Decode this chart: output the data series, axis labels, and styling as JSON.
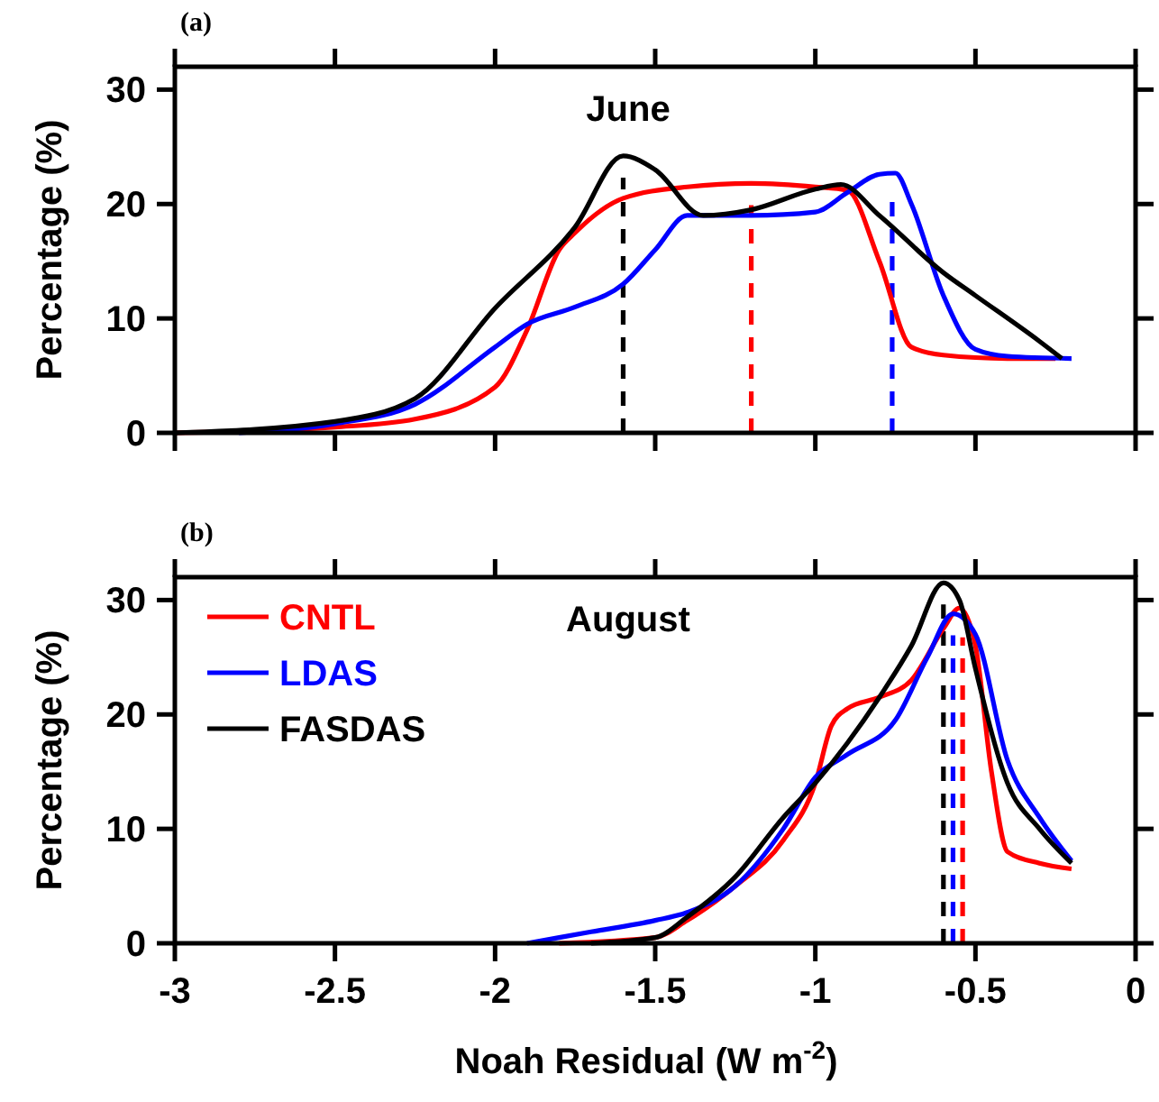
{
  "chart_data": [
    {
      "type": "line",
      "title": "June",
      "ylabel": "Percentage (%)",
      "annotations": [
        "(a)"
      ],
      "xlim": [
        -3,
        0
      ],
      "xticks": [
        -3,
        -2.5,
        -2,
        -1.5,
        -1,
        -0.5,
        0
      ],
      "ylim": [
        0,
        32
      ],
      "yticks": [
        0,
        10,
        20,
        30
      ],
      "tick_labels": "y",
      "legend": false,
      "line_style": "solid",
      "series": [
        {
          "color": "#ff0000",
          "x": [
            -3,
            -2.5,
            -2.25,
            -2.0,
            -1.9,
            -1.8,
            -1.75,
            -1.6,
            -1.4,
            -1.2,
            -1.0,
            -0.9,
            -0.8,
            -0.7,
            -0.6,
            -0.4,
            -0.25
          ],
          "values": [
            0,
            0.5,
            1.2,
            4,
            9,
            16,
            17.5,
            20.5,
            21.5,
            21.8,
            21.5,
            21.2,
            15,
            7.5,
            6.8,
            6.5,
            6.5
          ]
        },
        {
          "color": "#0000ff",
          "x": [
            -2.8,
            -2.5,
            -2.25,
            -2,
            -1.9,
            -1.75,
            -1.6,
            -1.5,
            -1.4,
            -1.2,
            -1.0,
            -0.9,
            -0.8,
            -0.75,
            -0.7,
            -0.6,
            -0.5,
            -0.4,
            -0.2
          ],
          "values": [
            0,
            0.8,
            2.5,
            7.5,
            9.5,
            11,
            13,
            16,
            19,
            19,
            19.3,
            21,
            22.6,
            22.7,
            20,
            12,
            7.3,
            6.7,
            6.5
          ]
        },
        {
          "color": "#000000",
          "x": [
            -3,
            -2.5,
            -2.25,
            -2,
            -1.75,
            -1.6,
            -1.5,
            -1.35,
            -1.2,
            -1.0,
            -0.92,
            -0.8,
            -0.6,
            -0.5,
            -0.3,
            -0.23
          ],
          "values": [
            0,
            1,
            3,
            10.9,
            18,
            24.2,
            23,
            19,
            19.5,
            21.3,
            21.7,
            19,
            14,
            12,
            8,
            6.5
          ]
        }
      ],
      "ref_lines": [
        {
          "axis": "x",
          "value": -1.6,
          "color": "#000000",
          "line_style": "dashed"
        },
        {
          "axis": "x",
          "value": -1.2,
          "color": "#ff0000",
          "line_style": "dashed"
        },
        {
          "axis": "x",
          "value": -0.76,
          "color": "#0000ff",
          "line_style": "dashed"
        }
      ]
    },
    {
      "type": "line",
      "title": "August",
      "xlabel": "Noah Residual (W m$^{-2}$)",
      "ylabel": "Percentage (%)",
      "annotations": [
        "(b)"
      ],
      "xlim": [
        -3,
        0
      ],
      "xticks": [
        -3,
        -2.5,
        -2,
        -1.5,
        -1,
        -0.5,
        0
      ],
      "ylim": [
        0,
        32
      ],
      "yticks": [
        0,
        10,
        20,
        30
      ],
      "legend": "top left",
      "line_style": "solid",
      "series": [
        {
          "name": "CNTL",
          "color": "#ff0000",
          "x": [
            -1.8,
            -1.5,
            -1.4,
            -1.25,
            -1.1,
            -1.0,
            -0.95,
            -0.9,
            -0.8,
            -0.7,
            -0.6,
            -0.55,
            -0.5,
            -0.45,
            -0.4,
            -0.3,
            -0.2
          ],
          "values": [
            0,
            0.5,
            2,
            5,
            9,
            14,
            19,
            20.5,
            21.5,
            23,
            27.5,
            29.3,
            26,
            15,
            8,
            7,
            6.5
          ]
        },
        {
          "name": "LDAS",
          "color": "#0000ff",
          "x": [
            -1.9,
            -1.7,
            -1.5,
            -1.4,
            -1.25,
            -1.1,
            -1.0,
            -0.9,
            -0.75,
            -0.65,
            -0.57,
            -0.5,
            -0.4,
            -0.3,
            -0.2
          ],
          "values": [
            0,
            1,
            2,
            2.7,
            5,
            10,
            14.5,
            16.5,
            19.5,
            25,
            28.8,
            27,
            16,
            11,
            7.2
          ]
        },
        {
          "name": "FASDAS",
          "color": "#000000",
          "x": [
            -1.7,
            -1.5,
            -1.4,
            -1.25,
            -1.1,
            -1.0,
            -0.9,
            -0.8,
            -0.7,
            -0.6,
            -0.55,
            -0.5,
            -0.4,
            -0.3,
            -0.2
          ],
          "values": [
            0,
            0.5,
            2.3,
            5.8,
            11,
            14,
            17.5,
            21.5,
            26,
            31.5,
            30,
            24,
            14,
            10,
            7
          ]
        }
      ],
      "ref_lines": [
        {
          "axis": "x",
          "value": -0.6,
          "color": "#000000",
          "line_style": "dashed"
        },
        {
          "axis": "x",
          "value": -0.57,
          "color": "#0000ff",
          "line_style": "dashed"
        },
        {
          "axis": "x",
          "value": -0.54,
          "color": "#ff0000",
          "line_style": "dashed"
        }
      ]
    }
  ]
}
